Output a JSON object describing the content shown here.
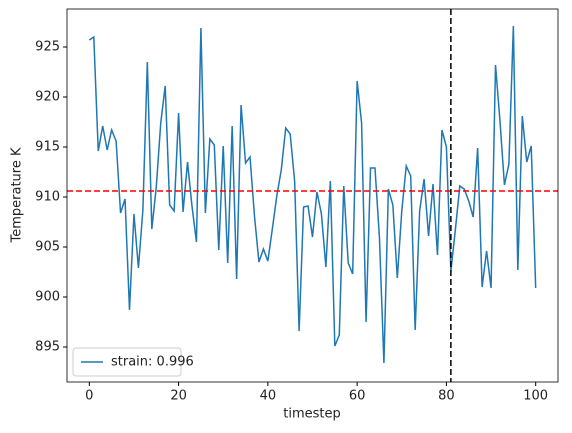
{
  "chart_data": {
    "type": "line",
    "x_label": "timestep",
    "y_label": "Temperature K",
    "x": [
      0,
      1,
      2,
      3,
      4,
      5,
      6,
      7,
      8,
      9,
      10,
      11,
      12,
      13,
      14,
      15,
      16,
      17,
      18,
      19,
      20,
      21,
      22,
      23,
      24,
      25,
      26,
      27,
      28,
      29,
      30,
      31,
      32,
      33,
      34,
      35,
      36,
      37,
      38,
      39,
      40,
      41,
      42,
      43,
      44,
      45,
      46,
      47,
      48,
      49,
      50,
      51,
      52,
      53,
      54,
      55,
      56,
      57,
      58,
      59,
      60,
      61,
      62,
      63,
      64,
      65,
      66,
      67,
      68,
      69,
      70,
      71,
      72,
      73,
      74,
      75,
      76,
      77,
      78,
      79,
      80,
      81,
      82,
      83,
      84,
      85,
      86,
      87,
      88,
      89,
      90,
      91,
      92,
      93,
      94,
      95,
      96,
      97,
      98,
      99,
      100
    ],
    "series": [
      {
        "name": "strain: 0.996",
        "color": "#1f77b4",
        "values": [
          925.7,
          926.0,
          914.6,
          917.1,
          914.7,
          916.7,
          915.6,
          908.4,
          909.8,
          898.7,
          908.3,
          902.9,
          908.7,
          923.5,
          906.8,
          911.0,
          917.4,
          921.1,
          909.2,
          908.6,
          918.4,
          908.5,
          913.5,
          909.1,
          905.5,
          926.9,
          908.4,
          915.8,
          915.2,
          904.7,
          915.1,
          903.4,
          917.1,
          901.8,
          919.2,
          913.4,
          914.0,
          908.1,
          903.5,
          904.8,
          903.6,
          906.8,
          910.1,
          912.7,
          916.9,
          916.3,
          911.6,
          896.6,
          909.0,
          909.1,
          906.0,
          910.5,
          908.3,
          903.0,
          911.6,
          895.1,
          896.2,
          911.1,
          903.4,
          902.3,
          921.6,
          917.4,
          897.5,
          912.9,
          912.9,
          905.9,
          893.4,
          910.8,
          909.2,
          901.9,
          908.6,
          913.1,
          912.1,
          896.7,
          908.6,
          911.8,
          906.1,
          911.3,
          904.2,
          916.7,
          915.0,
          902.6,
          906.7,
          911.1,
          910.8,
          909.6,
          908.0,
          914.9,
          901.0,
          904.6,
          900.9,
          923.2,
          917.6,
          911.2,
          913.3,
          927.1,
          902.7,
          918.1,
          913.5,
          915.1,
          900.9
        ]
      }
    ],
    "hline": {
      "value": 910.6,
      "color": "#ff0000"
    },
    "vline": {
      "value": 81,
      "color": "#000000"
    },
    "xlim": [
      -5,
      105
    ],
    "ylim": [
      891.5,
      928.8
    ],
    "xticks": [
      0,
      20,
      40,
      60,
      80,
      100
    ],
    "yticks": [
      895,
      900,
      905,
      910,
      915,
      920,
      925
    ],
    "legend": "lower left"
  }
}
